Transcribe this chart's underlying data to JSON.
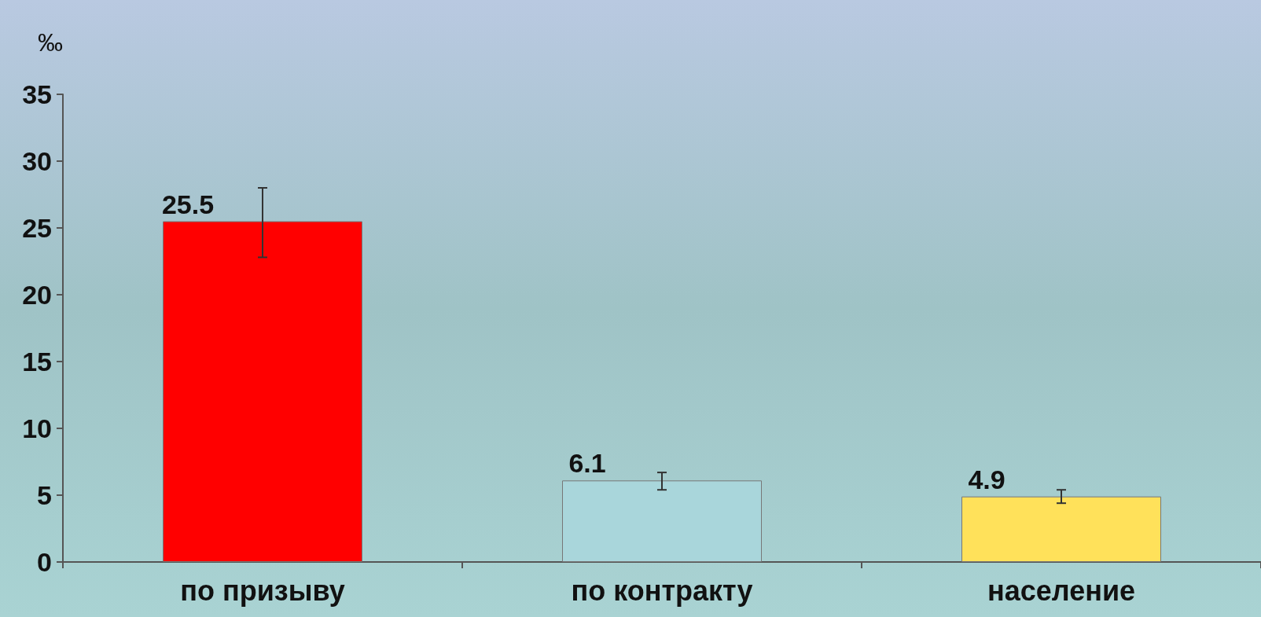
{
  "chart_data": {
    "type": "bar",
    "ylabel": "‰",
    "categories": [
      "по призыву",
      "по контракту",
      "население"
    ],
    "values": [
      25.5,
      6.1,
      4.9
    ],
    "colors": [
      "#ff0000",
      "#a9d6db",
      "#ffe15a"
    ],
    "errors": [
      [
        22.8,
        28.0
      ],
      [
        5.4,
        6.7
      ],
      [
        4.4,
        5.4
      ]
    ],
    "data_labels": true,
    "ylim": [
      0,
      35
    ],
    "yticks": [
      0,
      5,
      10,
      15,
      20,
      25,
      30,
      35
    ],
    "grid": false
  }
}
